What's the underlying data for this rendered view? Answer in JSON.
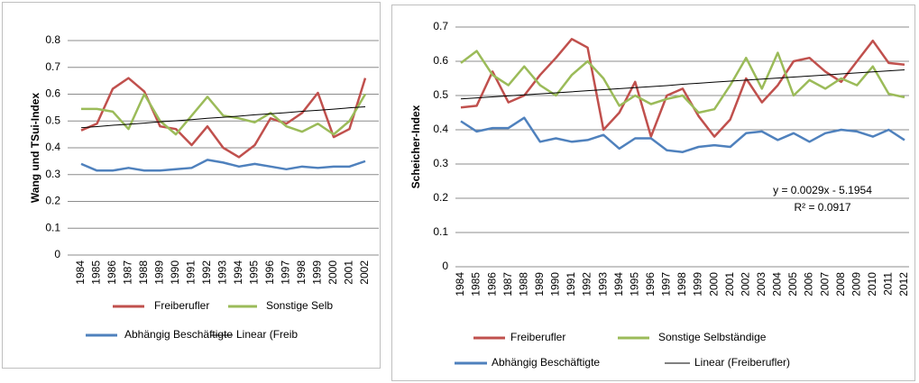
{
  "chart_data": [
    {
      "type": "line",
      "ylabel": "Wang und TSui-Index",
      "categories": [
        "1984",
        "1985",
        "1986",
        "1987",
        "1988",
        "1989",
        "1990",
        "1991",
        "1992",
        "1993",
        "1994",
        "1995",
        "1996",
        "1997",
        "1998",
        "1999",
        "2000",
        "2001",
        "2002"
      ],
      "ylim": [
        0,
        0.8
      ],
      "yticks": [
        0,
        0.1,
        0.2,
        0.3,
        0.4,
        0.5,
        0.6,
        0.7,
        0.8
      ],
      "grid": true,
      "series": [
        {
          "name": "Freiberufler",
          "color": "#c0504d",
          "values": [
            0.465,
            0.49,
            0.62,
            0.66,
            0.61,
            0.48,
            0.47,
            0.41,
            0.48,
            0.4,
            0.365,
            0.41,
            0.51,
            0.49,
            0.53,
            0.605,
            0.44,
            0.47,
            0.66
          ]
        },
        {
          "name": "Sonstige Selb",
          "color": "#9bbb59",
          "values": [
            0.545,
            0.545,
            0.535,
            0.47,
            0.6,
            0.5,
            0.45,
            0.52,
            0.59,
            0.52,
            0.51,
            0.495,
            0.53,
            0.48,
            0.46,
            0.49,
            0.45,
            0.5,
            0.6
          ]
        },
        {
          "name": "Abhängig Beschäftigte",
          "color": "#4f81bd",
          "values": [
            0.34,
            0.315,
            0.315,
            0.325,
            0.315,
            0.315,
            0.32,
            0.325,
            0.355,
            0.345,
            0.33,
            0.34,
            0.33,
            0.32,
            0.33,
            0.325,
            0.33,
            0.33,
            0.35
          ]
        },
        {
          "name": "Linear (Freib",
          "color": "#000000",
          "values": [
            0.475,
            0.479,
            0.484,
            0.488,
            0.492,
            0.497,
            0.501,
            0.505,
            0.51,
            0.514,
            0.518,
            0.523,
            0.527,
            0.531,
            0.536,
            0.54,
            0.544,
            0.549,
            0.553
          ]
        }
      ]
    },
    {
      "type": "line",
      "ylabel": "Scheicher-Index",
      "categories": [
        "1984",
        "1985",
        "1986",
        "1987",
        "1988",
        "1989",
        "1990",
        "1991",
        "1992",
        "1993",
        "1994",
        "1995",
        "1996",
        "1997",
        "1998",
        "1999",
        "2000",
        "2001",
        "2002",
        "2003",
        "2004",
        "2005",
        "2006",
        "2007",
        "2008",
        "2009",
        "2010",
        "2011",
        "2012"
      ],
      "ylim": [
        0,
        0.7
      ],
      "yticks": [
        0,
        0.1,
        0.2,
        0.3,
        0.4,
        0.5,
        0.6,
        0.7
      ],
      "grid": true,
      "annotations": [
        "y = 0.0029x - 5.1954",
        "R² = 0.0917"
      ],
      "series": [
        {
          "name": "Freiberufler",
          "color": "#c0504d",
          "values": [
            0.465,
            0.47,
            0.57,
            0.48,
            0.5,
            0.56,
            0.61,
            0.665,
            0.64,
            0.4,
            0.45,
            0.54,
            0.38,
            0.5,
            0.52,
            0.44,
            0.38,
            0.43,
            0.55,
            0.48,
            0.53,
            0.6,
            0.61,
            0.57,
            0.54,
            0.6,
            0.66,
            0.595,
            0.59
          ]
        },
        {
          "name": "Sonstige Selbständige",
          "color": "#9bbb59",
          "values": [
            0.595,
            0.63,
            0.56,
            0.53,
            0.585,
            0.53,
            0.5,
            0.56,
            0.6,
            0.55,
            0.47,
            0.5,
            0.475,
            0.49,
            0.5,
            0.45,
            0.46,
            0.53,
            0.61,
            0.52,
            0.625,
            0.5,
            0.545,
            0.52,
            0.55,
            0.53,
            0.585,
            0.505,
            0.495
          ]
        },
        {
          "name": "Abhängig Beschäftigte",
          "color": "#4f81bd",
          "values": [
            0.425,
            0.395,
            0.405,
            0.405,
            0.435,
            0.365,
            0.375,
            0.365,
            0.37,
            0.385,
            0.345,
            0.375,
            0.375,
            0.34,
            0.335,
            0.35,
            0.355,
            0.35,
            0.39,
            0.395,
            0.37,
            0.39,
            0.365,
            0.39,
            0.4,
            0.395,
            0.38,
            0.4,
            0.37
          ]
        },
        {
          "name": "Linear (Freiberufler)",
          "color": "#000000",
          "values": [
            0.49,
            0.493,
            0.496,
            0.499,
            0.502,
            0.505,
            0.508,
            0.511,
            0.514,
            0.517,
            0.52,
            0.523,
            0.526,
            0.529,
            0.533,
            0.536,
            0.539,
            0.542,
            0.545,
            0.548,
            0.551,
            0.554,
            0.557,
            0.56,
            0.563,
            0.566,
            0.569,
            0.572,
            0.575
          ]
        }
      ]
    }
  ]
}
